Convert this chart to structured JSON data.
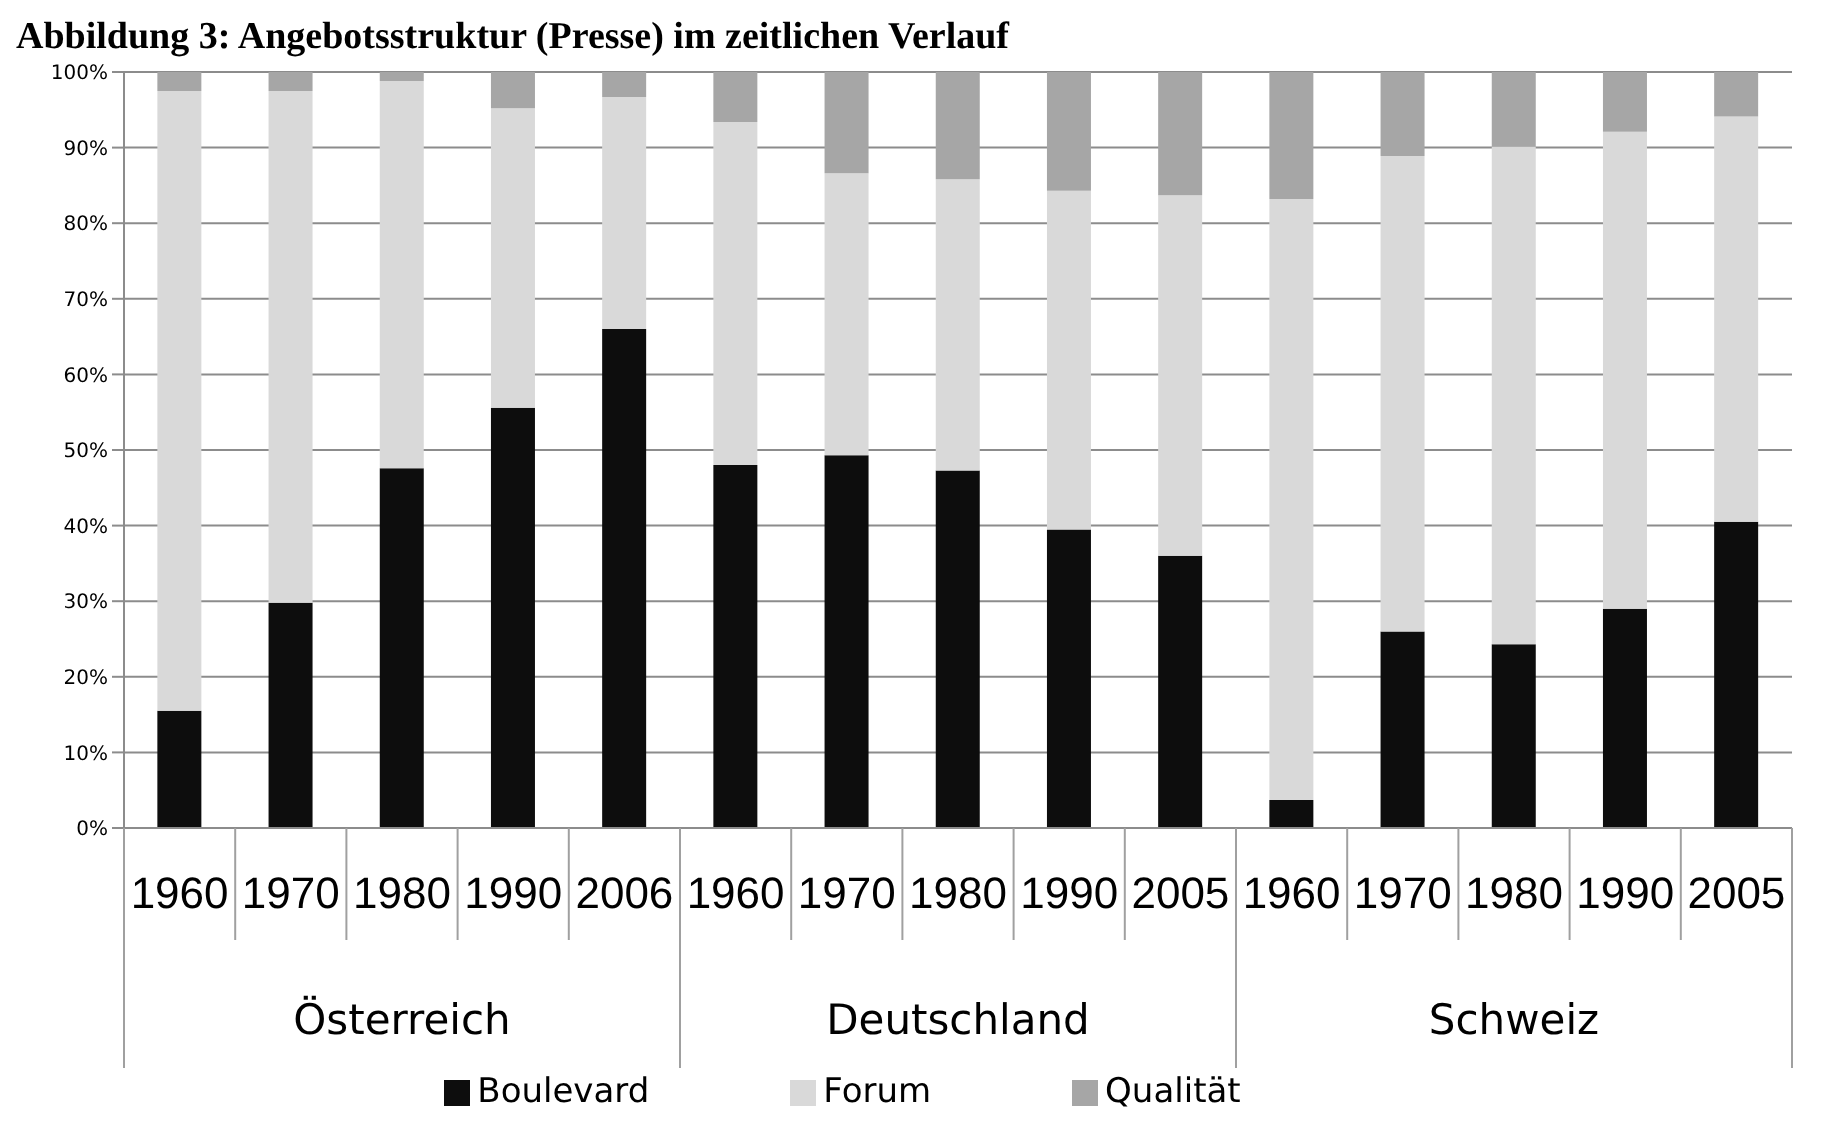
{
  "chart_data": {
    "type": "bar",
    "stacked": true,
    "title": "Abbildung 3: Angebotsstruktur (Presse) im zeitlichen Verlauf",
    "categories": [
      "1960",
      "1970",
      "1980",
      "1990",
      "2006",
      "1960",
      "1970",
      "1980",
      "1990",
      "2005",
      "1960",
      "1970",
      "1980",
      "1990",
      "2005"
    ],
    "annotations": [
      "Österreich",
      "Deutschland",
      "Schweiz"
    ],
    "series": [
      {
        "name": "Boulevard",
        "color": "#0d0d0d",
        "values": [
          15.5,
          29.8,
          47.6,
          55.6,
          66.0,
          48.0,
          49.3,
          47.3,
          39.5,
          36.0,
          3.7,
          26.0,
          24.3,
          29.0,
          40.5
        ]
      },
      {
        "name": "Forum",
        "color": "#d9d9d9",
        "values": [
          82.0,
          67.7,
          51.2,
          39.6,
          30.7,
          45.4,
          37.3,
          38.5,
          44.8,
          47.7,
          79.5,
          62.9,
          65.8,
          63.1,
          53.6
        ]
      },
      {
        "name": "Qualität",
        "color": "#a6a6a6",
        "values": [
          2.5,
          2.5,
          1.2,
          4.8,
          3.3,
          6.6,
          13.4,
          14.2,
          15.7,
          16.3,
          16.8,
          11.1,
          9.9,
          7.9,
          5.9
        ]
      }
    ],
    "ylim": [
      0,
      100
    ],
    "yticks": [
      {
        "value": 0,
        "label": "0%"
      },
      {
        "value": 10,
        "label": "10%"
      },
      {
        "value": 20,
        "label": "20%"
      },
      {
        "value": 30,
        "label": "30%"
      },
      {
        "value": 40,
        "label": "40%"
      },
      {
        "value": 50,
        "label": "50%"
      },
      {
        "value": 60,
        "label": "60%"
      },
      {
        "value": 70,
        "label": "70%"
      },
      {
        "value": 80,
        "label": "80%"
      },
      {
        "value": 90,
        "label": "90%"
      },
      {
        "value": 100,
        "label": "100%"
      }
    ],
    "grid": "y",
    "legend": "bottom"
  }
}
